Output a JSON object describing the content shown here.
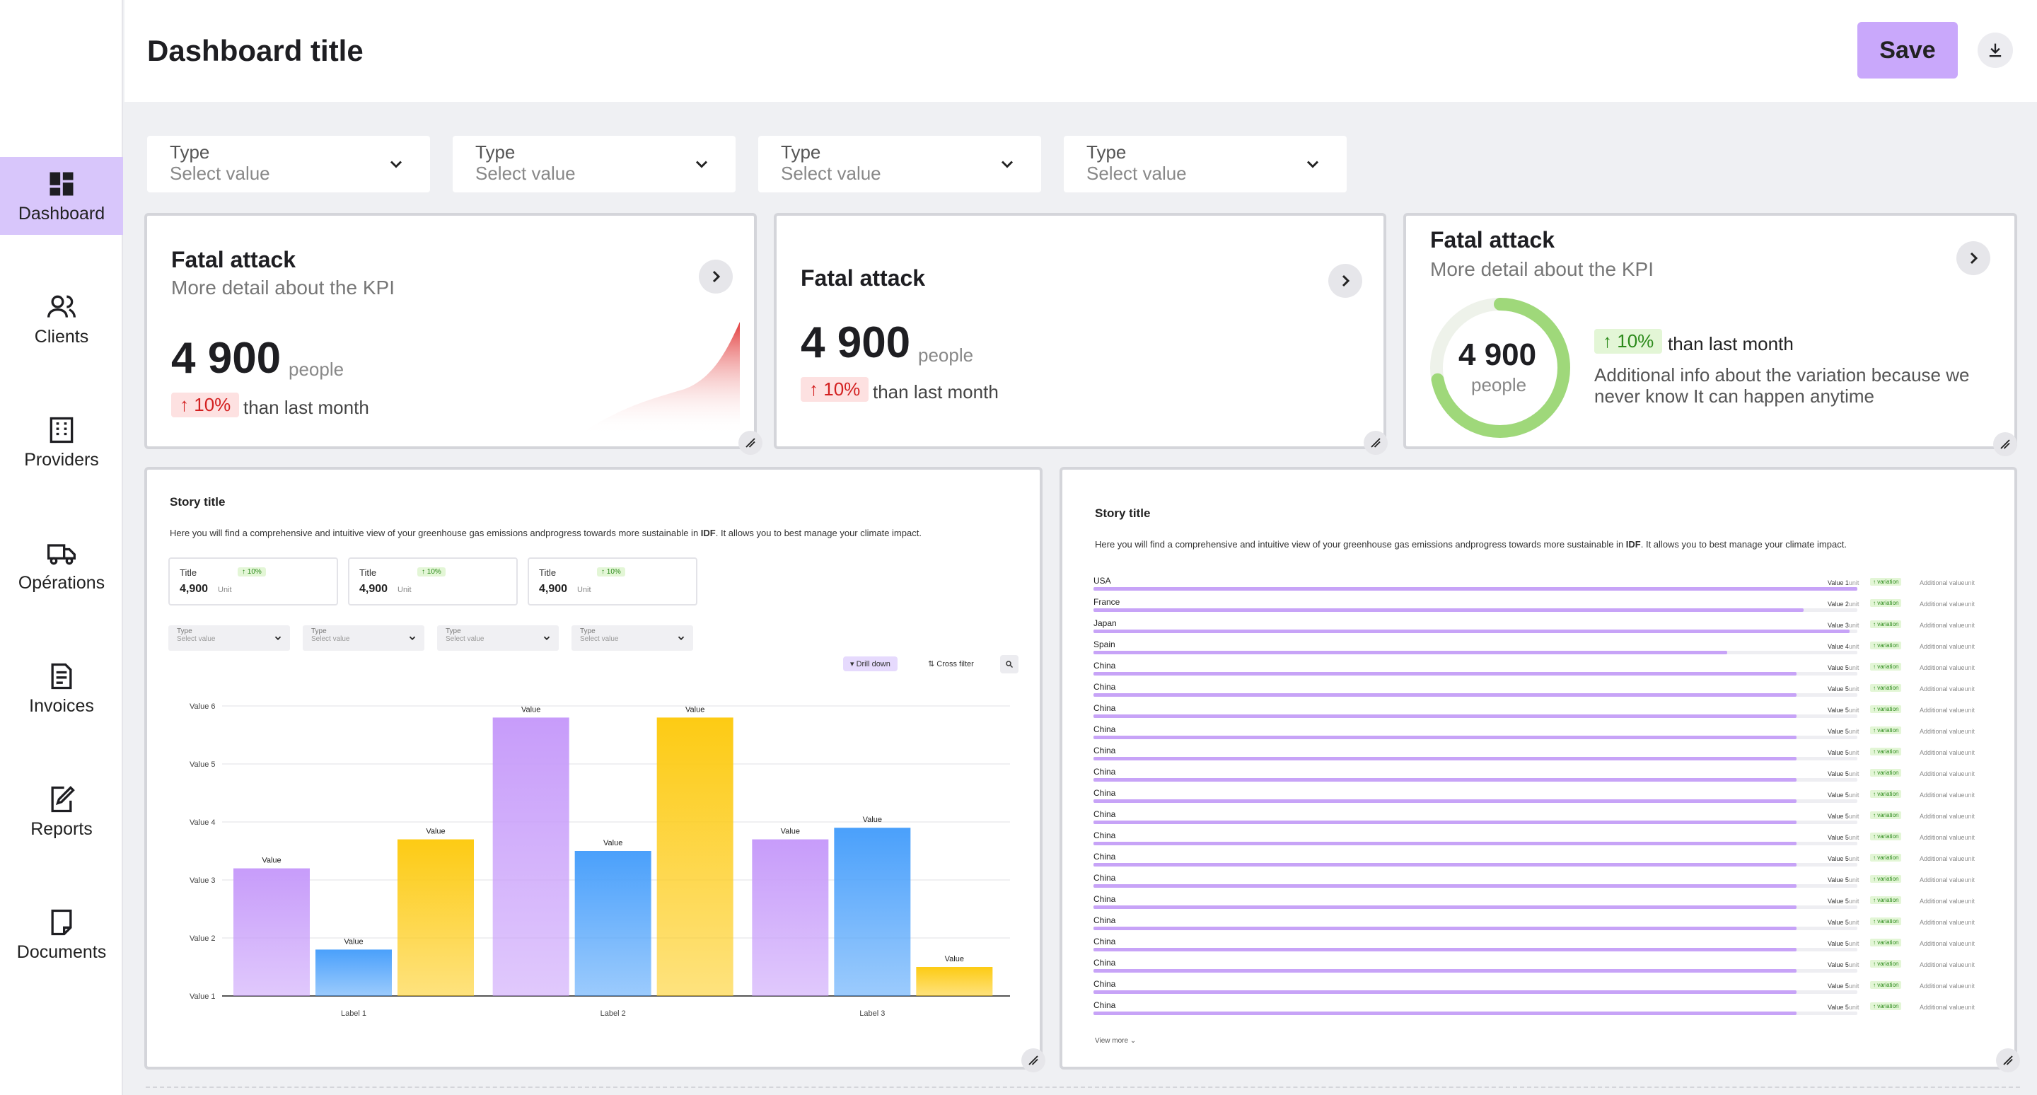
{
  "header": {
    "title": "Dashboard title",
    "save_label": "Save"
  },
  "sidebar": {
    "items": [
      {
        "label": "Dashboard",
        "icon": "dashboard-icon",
        "active": true
      },
      {
        "label": "Clients",
        "icon": "users-icon"
      },
      {
        "label": "Providers",
        "icon": "building-icon"
      },
      {
        "label": "Opérations",
        "icon": "truck-icon"
      },
      {
        "label": "Invoices",
        "icon": "invoice-icon"
      },
      {
        "label": "Reports",
        "icon": "report-icon"
      },
      {
        "label": "Documents",
        "icon": "document-icon"
      }
    ]
  },
  "filters": [
    {
      "label": "Type",
      "value": "Select value"
    },
    {
      "label": "Type",
      "value": "Select value"
    },
    {
      "label": "Type",
      "value": "Select value"
    },
    {
      "label": "Type",
      "value": "Select value"
    }
  ],
  "kpis": [
    {
      "title": "Fatal attack",
      "subtitle": "More detail about the KPI",
      "value": "4 900",
      "unit": "people",
      "badge": "10%",
      "compare": "than last month"
    },
    {
      "title": "Fatal attack",
      "value": "4 900",
      "unit": "people",
      "badge": "10%",
      "compare": "than last month"
    },
    {
      "title": "Fatal attack",
      "subtitle": "More detail about the KPI",
      "value": "4 900",
      "unit": "people",
      "badge": "10%",
      "compare": "than last month",
      "info": "Additional info about the variation because we never know It can happen anytime",
      "gauge": 0.72
    }
  ],
  "story_left": {
    "title": "Story title",
    "desc_prefix": "Here you will find a comprehensive and intuitive view of your greenhouse gas emissions andprogress towards more sustainable in ",
    "desc_bold": "IDF",
    "desc_suffix": ".  It allows you to best manage your climate impact.",
    "mini_kpis": [
      {
        "title": "Title",
        "value": "4,900",
        "unit": "Unit",
        "badge": "10%"
      },
      {
        "title": "Title",
        "value": "4,900",
        "unit": "Unit",
        "badge": "10%"
      },
      {
        "title": "Title",
        "value": "4,900",
        "unit": "Unit",
        "badge": "10%"
      }
    ],
    "filters": [
      {
        "label": "Type",
        "value": "Select value"
      },
      {
        "label": "Type",
        "value": "Select value"
      },
      {
        "label": "Type",
        "value": "Select value"
      },
      {
        "label": "Type",
        "value": "Select value"
      }
    ],
    "drill_label": "Drill down",
    "cross_label": "Cross filter"
  },
  "chart_data": {
    "type": "bar",
    "categories": [
      "Label 1",
      "Label 2",
      "Label 3"
    ],
    "y_ticks": [
      "Value 1",
      "Value 2",
      "Value 3",
      "Value 4",
      "Value 5",
      "Value 6"
    ],
    "ylim": [
      1,
      6
    ],
    "grid": true,
    "bar_label": "Value",
    "series": [
      {
        "values": [
          3.2,
          5.8,
          3.7
        ],
        "color": "#c79cfa"
      },
      {
        "values": [
          1.8,
          3.5,
          3.9
        ],
        "color": "#4aa0fb"
      },
      {
        "values": [
          3.7,
          5.8,
          1.5
        ],
        "color": "#fdcb14"
      }
    ]
  },
  "story_right": {
    "title": "Story title",
    "desc_prefix": "Here you will find a comprehensive and intuitive view of your greenhouse gas emissions andprogress towards more sustainable in ",
    "desc_bold": "IDF",
    "desc_suffix": ".  It allows you to best manage your climate impact.",
    "rows": [
      {
        "label": "USA",
        "value": "Value 1",
        "fill": 1.0
      },
      {
        "label": "France",
        "value": "Value 2",
        "fill": 0.93
      },
      {
        "label": "Japan",
        "value": "Value 3",
        "fill": 0.99
      },
      {
        "label": "Spain",
        "value": "Value 4",
        "fill": 0.83
      },
      {
        "label": "China",
        "value": "Value 5",
        "fill": 0.92
      },
      {
        "label": "China",
        "value": "Value 5",
        "fill": 0.92
      },
      {
        "label": "China",
        "value": "Value 5",
        "fill": 0.92
      },
      {
        "label": "China",
        "value": "Value 5",
        "fill": 0.92
      },
      {
        "label": "China",
        "value": "Value 5",
        "fill": 0.92
      },
      {
        "label": "China",
        "value": "Value 5",
        "fill": 0.92
      },
      {
        "label": "China",
        "value": "Value 5",
        "fill": 0.92
      },
      {
        "label": "China",
        "value": "Value 5",
        "fill": 0.92
      },
      {
        "label": "China",
        "value": "Value 5",
        "fill": 0.92
      },
      {
        "label": "China",
        "value": "Value 5",
        "fill": 0.92
      },
      {
        "label": "China",
        "value": "Value 5",
        "fill": 0.92
      },
      {
        "label": "China",
        "value": "Value 5",
        "fill": 0.92
      },
      {
        "label": "China",
        "value": "Value 5",
        "fill": 0.92
      },
      {
        "label": "China",
        "value": "Value 5",
        "fill": 0.92
      },
      {
        "label": "China",
        "value": "Value 5",
        "fill": 0.92
      },
      {
        "label": "China",
        "value": "Value 5",
        "fill": 0.92
      },
      {
        "label": "China",
        "value": "Value 5",
        "fill": 0.92
      }
    ],
    "unit": "unit",
    "variation": "variation",
    "additional": "Additional value",
    "view_more": "View more"
  }
}
